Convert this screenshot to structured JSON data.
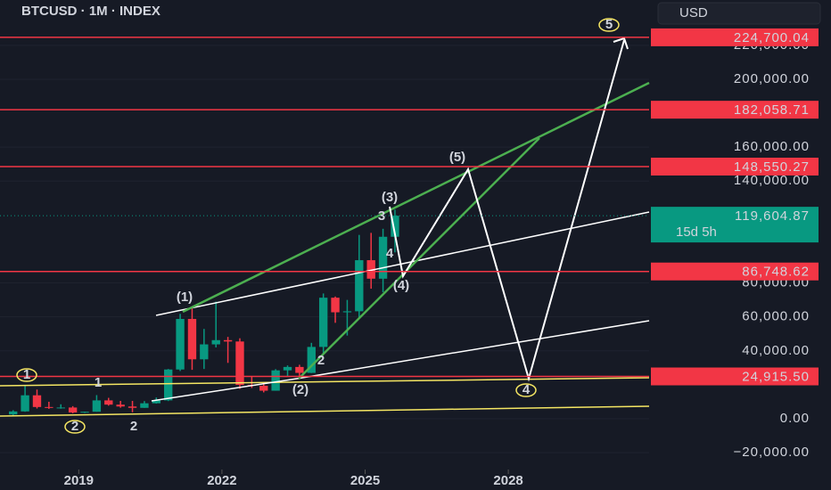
{
  "chart_data": {
    "type": "candlestick",
    "title": "BTCUSD · 1M · INDEX",
    "currency_button": "USD",
    "xlim": [
      2017.35,
      2030.95
    ],
    "xticks": [
      2019,
      2022,
      2025,
      2028
    ],
    "ylim": [
      -42000,
      246700
    ],
    "yticks": [
      {
        "value": 220000,
        "label": "220,000.00"
      },
      {
        "value": 200000,
        "label": "200,000.00"
      },
      {
        "value": 160000,
        "label": "160,000.00"
      },
      {
        "value": 140000,
        "label": "140,000.00"
      },
      {
        "value": 80000,
        "label": "80,000.00"
      },
      {
        "value": 60000,
        "label": "60,000.00"
      },
      {
        "value": 40000,
        "label": "40,000.00"
      },
      {
        "value": 0,
        "label": "0.00"
      },
      {
        "value": -20000,
        "label": "−20,000.00"
      }
    ],
    "up_color": "#089981",
    "down_color": "#f23645",
    "candles": {
      "x": [
        2017.5,
        2017.75,
        2018,
        2018.25,
        2018.5,
        2018.75,
        2019,
        2019.25,
        2019.5,
        2019.75,
        2020,
        2020.25,
        2020.5,
        2020.75,
        2021,
        2021.25,
        2021.5,
        2021.75,
        2022,
        2022.25,
        2022.5,
        2022.75,
        2023,
        2023.25,
        2023.5,
        2023.75,
        2024,
        2024.25,
        2024.5,
        2024.75,
        2025,
        2025.25,
        2025.5
      ],
      "open": [
        2500,
        4300,
        13800,
        6900,
        6400,
        6600,
        3700,
        4100,
        10800,
        8300,
        7200,
        6400,
        9100,
        10800,
        29000,
        58800,
        35000,
        43800,
        46300,
        45500,
        19900,
        19400,
        16500,
        28500,
        30500,
        27000,
        42300,
        71300,
        62700,
        63300,
        93400,
        82500,
        107200
      ],
      "high": [
        5000,
        19700,
        17200,
        9990,
        8500,
        7400,
        4200,
        13900,
        12300,
        10500,
        10500,
        10400,
        12500,
        29300,
        61800,
        64900,
        52900,
        69000,
        48200,
        47400,
        25200,
        21500,
        29200,
        31400,
        31800,
        44700,
        73800,
        72000,
        70000,
        108300,
        109500,
        111900,
        123200
      ],
      "low": [
        1800,
        4100,
        6000,
        5800,
        5900,
        3200,
        3400,
        4100,
        7700,
        6500,
        3800,
        6400,
        8900,
        10400,
        28100,
        28800,
        29300,
        42000,
        32900,
        17600,
        18100,
        15500,
        16500,
        24800,
        24900,
        26900,
        38500,
        56500,
        49000,
        58900,
        76600,
        74500,
        98000
      ],
      "close": [
        4300,
        13800,
        6900,
        6400,
        6600,
        3700,
        4100,
        10800,
        8300,
        7200,
        6400,
        9100,
        10800,
        29000,
        58800,
        35000,
        43800,
        46300,
        45500,
        19900,
        19400,
        16500,
        28500,
        30500,
        27000,
        42300,
        71300,
        62700,
        63300,
        93400,
        82500,
        107200,
        119604.87
      ]
    },
    "levels": [
      {
        "value": 224700.04,
        "label": "224,700.04"
      },
      {
        "value": 182058.71,
        "label": "182,058.71"
      },
      {
        "value": 148550.27,
        "label": "148,550.27"
      },
      {
        "value": 86748.62,
        "label": "86,748.62"
      },
      {
        "value": 24915.5,
        "label": "24,915.50"
      }
    ],
    "last_price": {
      "value": 119604.87,
      "label": "119,604.87",
      "countdown": "15d 5h"
    },
    "annotations": [
      "(1)",
      "(2)",
      "(3)",
      "(4)",
      "(5)",
      "1",
      "2",
      "4",
      "5",
      "1",
      "2",
      "3",
      "2",
      "4"
    ]
  }
}
